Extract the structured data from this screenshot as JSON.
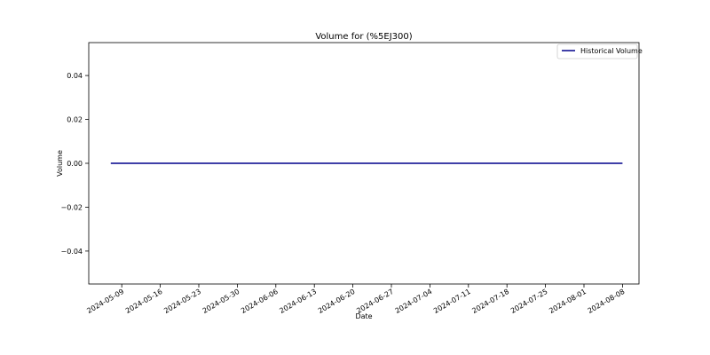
{
  "chart_data": {
    "type": "line",
    "title": "Volume for  (%5EJ300)",
    "xlabel": "Date",
    "ylabel": "Volume",
    "x_ticks": [
      "2024-05-09",
      "2024-05-16",
      "2024-05-23",
      "2024-05-30",
      "2024-06-06",
      "2024-06-13",
      "2024-06-20",
      "2024-06-27",
      "2024-07-04",
      "2024-07-11",
      "2024-07-18",
      "2024-07-25",
      "2024-08-01",
      "2024-08-08"
    ],
    "y_ticks": [
      0.04,
      0.02,
      0.0,
      -0.02,
      -0.04
    ],
    "y_tick_labels": [
      "0.04",
      "0.02",
      "0.00",
      "−0.02",
      "−0.04"
    ],
    "ylim": [
      -0.055,
      0.055
    ],
    "xlim": [
      "2024-05-03",
      "2024-08-11"
    ],
    "grid": false,
    "legend_position": "top-right",
    "series": [
      {
        "name": "Historical Volume",
        "color": "#00008b",
        "x": [
          "2024-05-07",
          "2024-08-08"
        ],
        "y": [
          0,
          0
        ]
      }
    ]
  }
}
